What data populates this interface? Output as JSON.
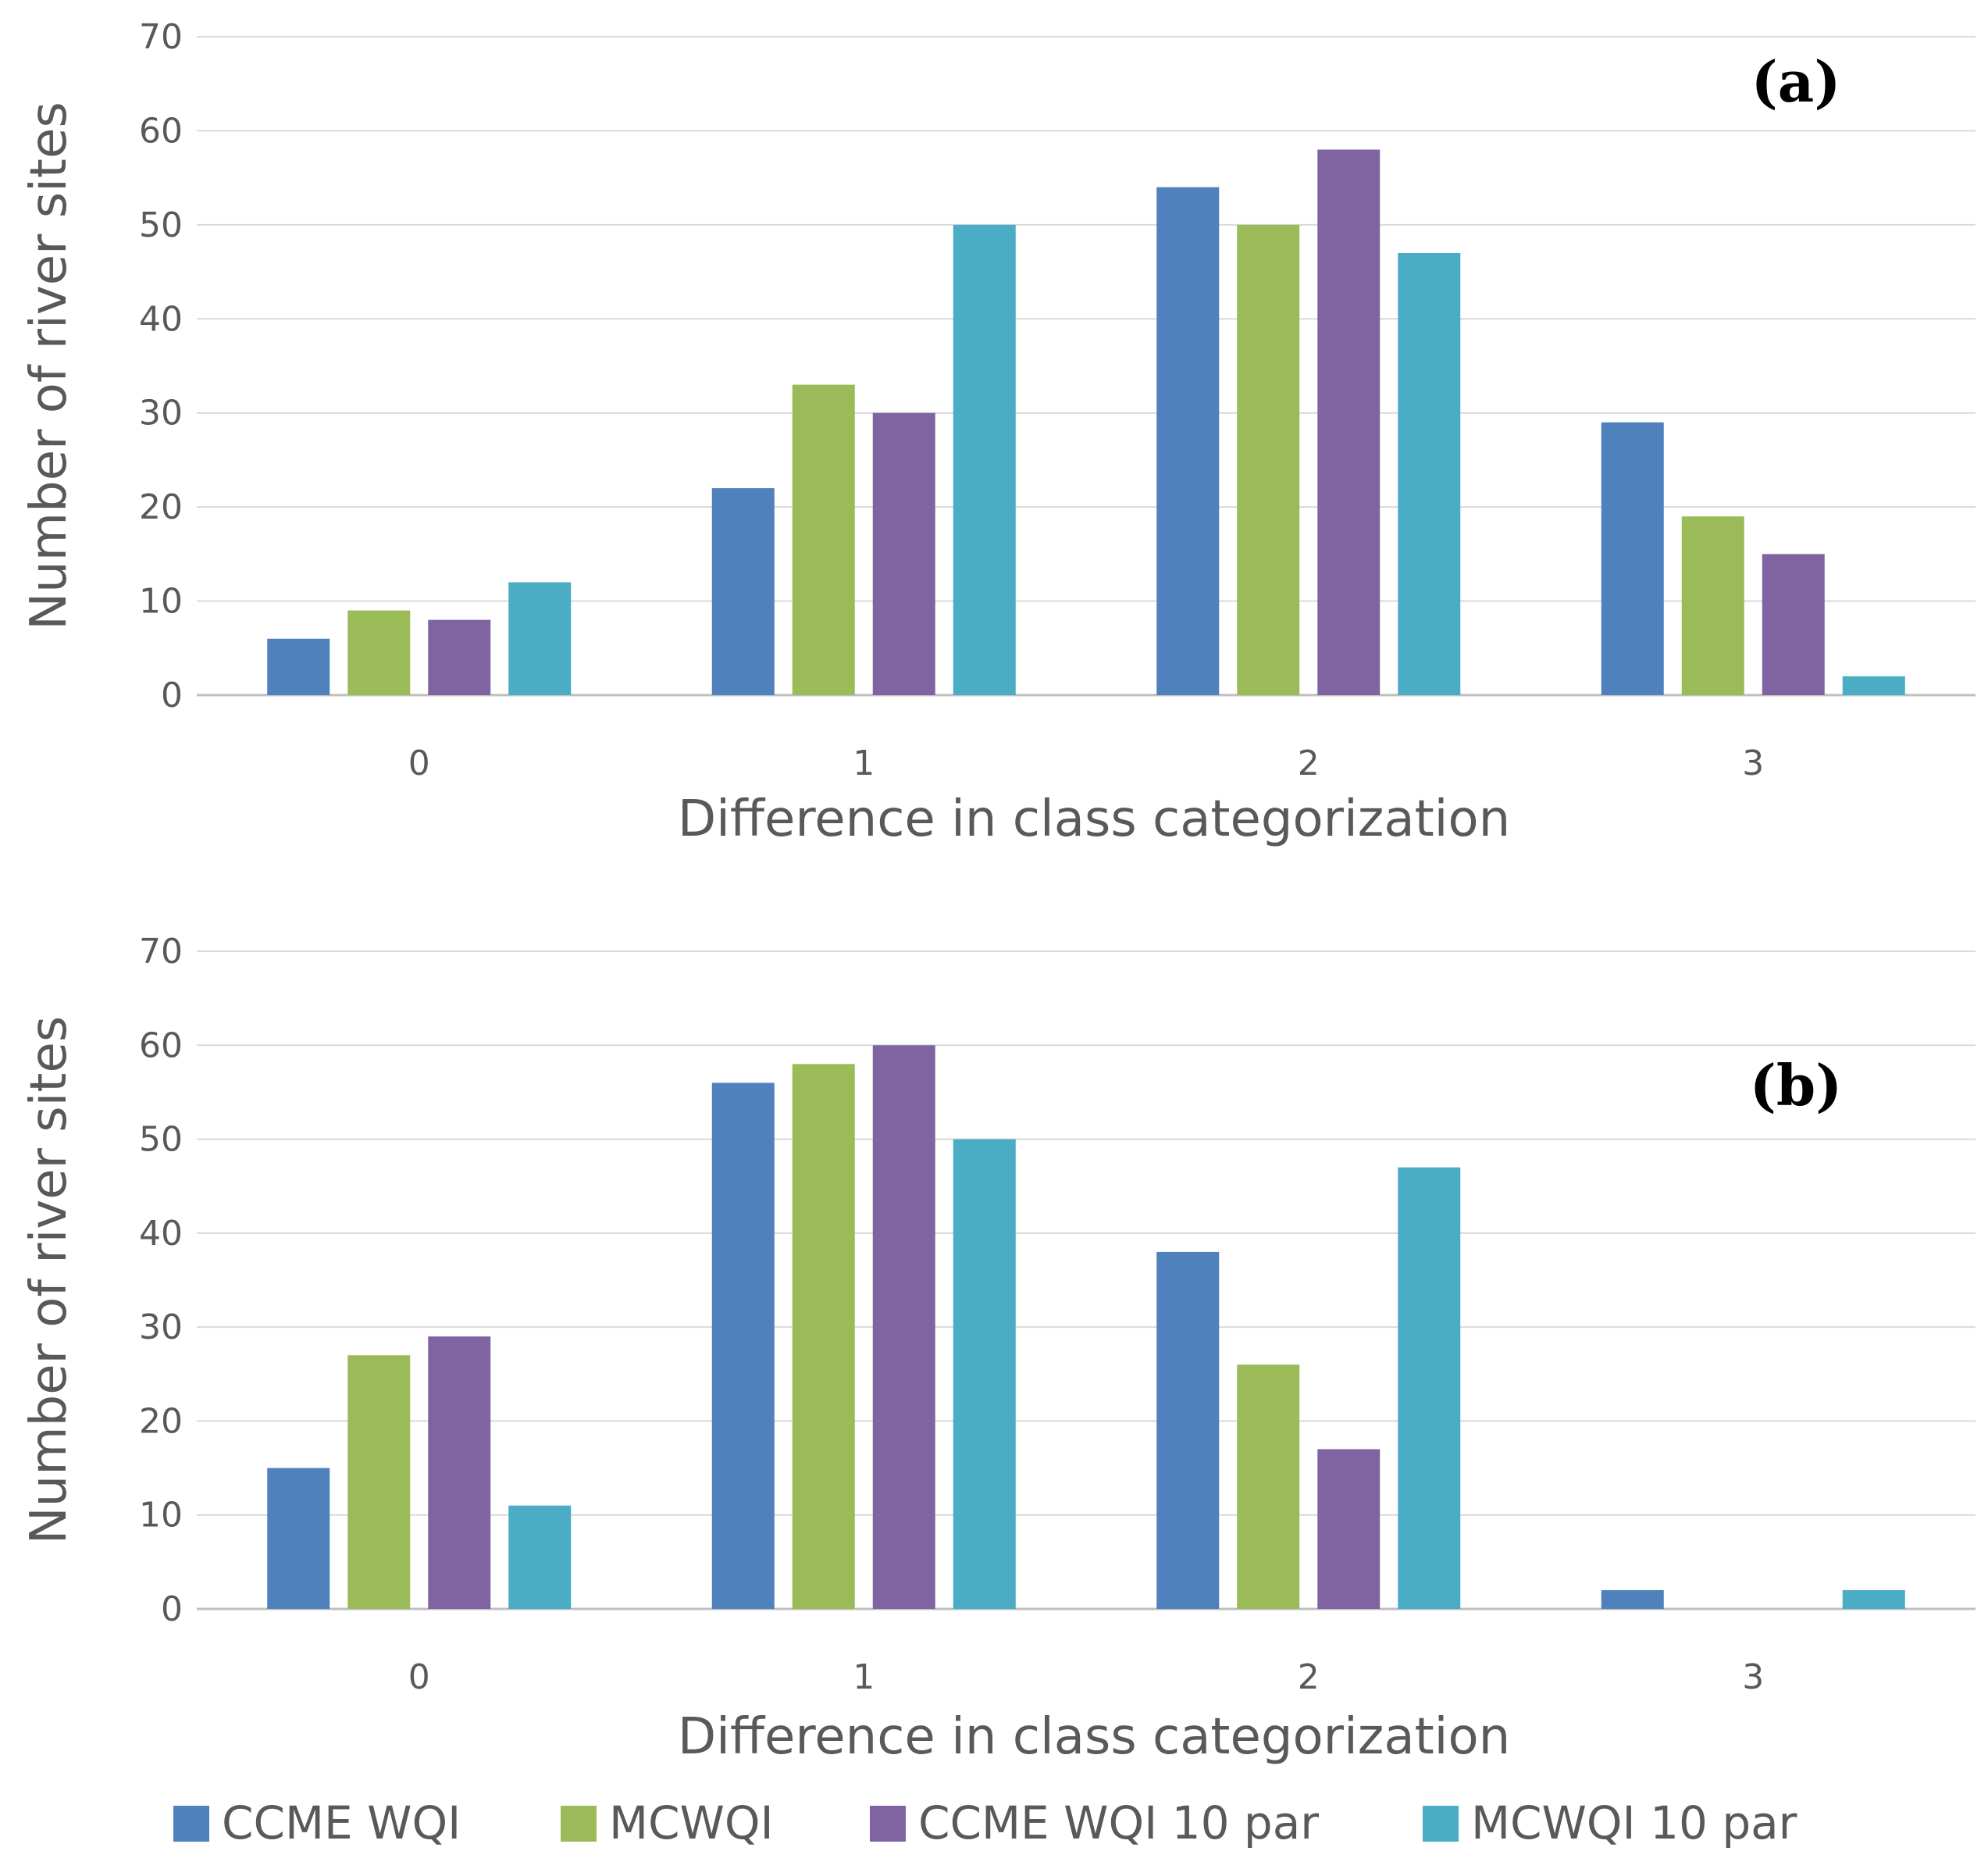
{
  "chart_data": [
    {
      "type": "bar",
      "panel_label": "(a)",
      "categories": [
        "0",
        "1",
        "2",
        "3"
      ],
      "xlabel": "Difference in class categorization",
      "ylabel": "Number of river sites",
      "ylim": [
        0,
        70
      ],
      "yticks": [
        0,
        10,
        20,
        30,
        40,
        50,
        60,
        70
      ],
      "grid": true,
      "series": [
        {
          "name": "CCME WQI",
          "color": "#4F81BD",
          "values": [
            6,
            22,
            54,
            29
          ]
        },
        {
          "name": "MCWQI",
          "color": "#9BBB59",
          "values": [
            9,
            33,
            50,
            19
          ]
        },
        {
          "name": "CCME WQI 10 par",
          "color": "#8064A2",
          "values": [
            8,
            30,
            58,
            15
          ]
        },
        {
          "name": "MCWQI 10 par",
          "color": "#4BACC6",
          "values": [
            12,
            50,
            47,
            2
          ]
        }
      ]
    },
    {
      "type": "bar",
      "panel_label": "(b)",
      "categories": [
        "0",
        "1",
        "2",
        "3"
      ],
      "xlabel": "Difference in class categorization",
      "ylabel": "Number of river sites",
      "ylim": [
        0,
        70
      ],
      "yticks": [
        0,
        10,
        20,
        30,
        40,
        50,
        60,
        70
      ],
      "grid": true,
      "series": [
        {
          "name": "CCME WQI",
          "color": "#4F81BD",
          "values": [
            15,
            56,
            38,
            2
          ]
        },
        {
          "name": "MCWQI",
          "color": "#9BBB59",
          "values": [
            27,
            58,
            26,
            0
          ]
        },
        {
          "name": "CCME WQI 10 par",
          "color": "#8064A2",
          "values": [
            29,
            60,
            17,
            0
          ]
        },
        {
          "name": "MCWQI 10 par",
          "color": "#4BACC6",
          "values": [
            11,
            50,
            47,
            2
          ]
        }
      ]
    }
  ],
  "legend": {
    "position": "bottom",
    "items": [
      {
        "label": "CCME WQI",
        "color": "#4F81BD"
      },
      {
        "label": "MCWQI",
        "color": "#9BBB59"
      },
      {
        "label": "CCME WQI 10 par",
        "color": "#8064A2"
      },
      {
        "label": "MCWQI 10 par",
        "color": "#4BACC6"
      }
    ]
  }
}
